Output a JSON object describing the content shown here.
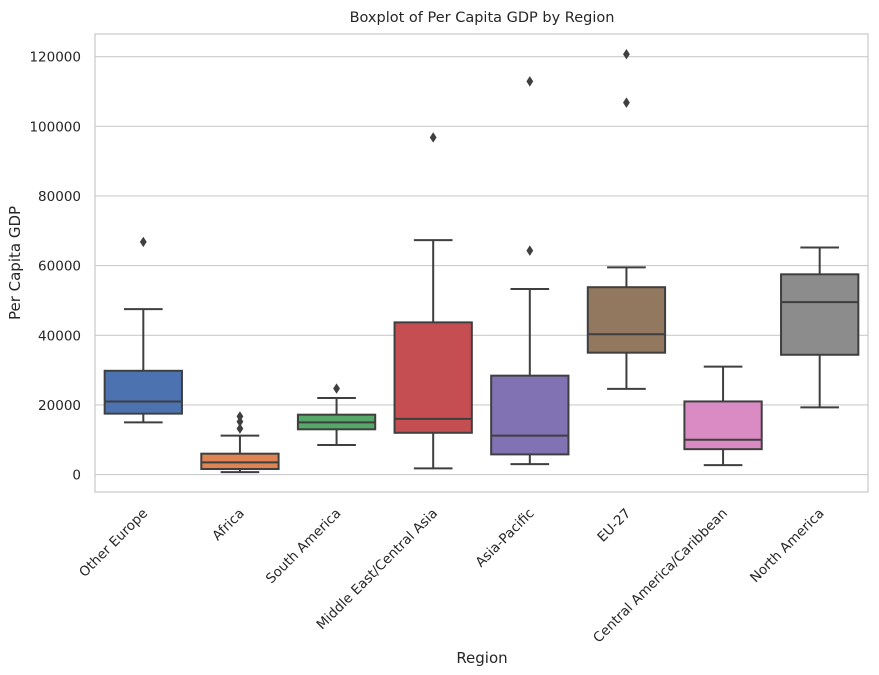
{
  "chart_data": {
    "type": "boxplot",
    "title": "Boxplot of Per Capita GDP by Region",
    "xlabel": "Region",
    "ylabel": "Per Capita GDP",
    "ylim": [
      -5000,
      126500
    ],
    "yticks": [
      0,
      20000,
      40000,
      60000,
      80000,
      100000,
      120000
    ],
    "grid": true,
    "categories": [
      "Other Europe",
      "Africa",
      "South America",
      "Middle East/Central Asia",
      "Asia-Pacific",
      "EU-27",
      "Central America/Caribbean",
      "North America"
    ],
    "boxes": [
      {
        "category": "Other Europe",
        "color": "#4c72b0",
        "whisker_low": 15000,
        "q1": 17500,
        "median": 21000,
        "q3": 29800,
        "whisker_high": 47500,
        "outliers": [
          66800
        ]
      },
      {
        "category": "Africa",
        "color": "#dd8452",
        "whisker_low": 700,
        "q1": 1600,
        "median": 3500,
        "q3": 6000,
        "whisker_high": 11200,
        "outliers": [
          13200,
          15200,
          16700
        ]
      },
      {
        "category": "South America",
        "color": "#55a868",
        "whisker_low": 8500,
        "q1": 13000,
        "median": 15000,
        "q3": 17200,
        "whisker_high": 22000,
        "outliers": [
          24700
        ]
      },
      {
        "category": "Middle East/Central Asia",
        "color": "#c44e52",
        "whisker_low": 1800,
        "q1": 12000,
        "median": 16000,
        "q3": 43700,
        "whisker_high": 67300,
        "outliers": [
          96800
        ]
      },
      {
        "category": "Asia-Pacific",
        "color": "#8172b3",
        "whisker_low": 3000,
        "q1": 5800,
        "median": 11200,
        "q3": 28400,
        "whisker_high": 53300,
        "outliers": [
          64300,
          112900
        ]
      },
      {
        "category": "EU-27",
        "color": "#937860",
        "whisker_low": 24600,
        "q1": 35000,
        "median": 40300,
        "q3": 53800,
        "whisker_high": 59500,
        "outliers": [
          106800,
          120700
        ]
      },
      {
        "category": "Central America/Caribbean",
        "color": "#da8bc3",
        "whisker_low": 2700,
        "q1": 7300,
        "median": 10000,
        "q3": 21000,
        "whisker_high": 31000,
        "outliers": []
      },
      {
        "category": "North America",
        "color": "#8c8c8c",
        "whisker_low": 19300,
        "q1": 34400,
        "median": 49500,
        "q3": 57500,
        "whisker_high": 65200,
        "outliers": []
      }
    ]
  }
}
